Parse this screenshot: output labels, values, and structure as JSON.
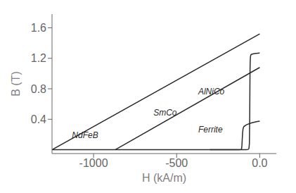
{
  "chart_data": {
    "type": "line",
    "xlabel": "H (kA/m)",
    "ylabel": "B (T)",
    "xlim": [
      -1250,
      100
    ],
    "ylim": [
      -0.05,
      1.78
    ],
    "xticks": [
      -1000,
      -500,
      {
        "value": 0,
        "label": "0.0"
      }
    ],
    "yticks": [
      0.4,
      0.8,
      1.2,
      1.6
    ],
    "grid": false,
    "color": "#2a2a2a",
    "series": [
      {
        "x": [
          -1250,
          0
        ],
        "values": [
          0.0,
          1.52
        ]
      },
      {
        "x": [
          -870,
          0
        ],
        "values": [
          0.0,
          1.08
        ]
      },
      {
        "x": [
          0,
          -10,
          -20,
          -30,
          -40,
          -48,
          -52,
          -54,
          -56,
          -57,
          -58,
          -59,
          -60,
          -62,
          -65,
          -70,
          -80,
          -200,
          -600,
          -1250
        ],
        "values": [
          1.27,
          1.268,
          1.265,
          1.262,
          1.258,
          1.254,
          1.248,
          1.238,
          1.21,
          1.16,
          1.08,
          0.82,
          0.45,
          0.08,
          0.015,
          0.004,
          0.001,
          0.0,
          0.0,
          0.0
        ]
      },
      {
        "x": [
          0,
          -20,
          -50,
          -80,
          -95,
          -100,
          -103,
          -105,
          -107,
          -109,
          -112,
          -130,
          -300
        ],
        "values": [
          0.375,
          0.368,
          0.352,
          0.328,
          0.305,
          0.278,
          0.22,
          0.14,
          0.055,
          0.012,
          0.002,
          0.0,
          0.0
        ]
      }
    ],
    "annotations": [
      {
        "text": "NdFeB",
        "x": -1130,
        "y": 0.13
      },
      {
        "text": "SmCo",
        "x": -640,
        "y": 0.42
      },
      {
        "text": "AlNiCo",
        "x": -370,
        "y": 0.7
      },
      {
        "text": "Ferrite",
        "x": -370,
        "y": 0.2
      }
    ]
  }
}
